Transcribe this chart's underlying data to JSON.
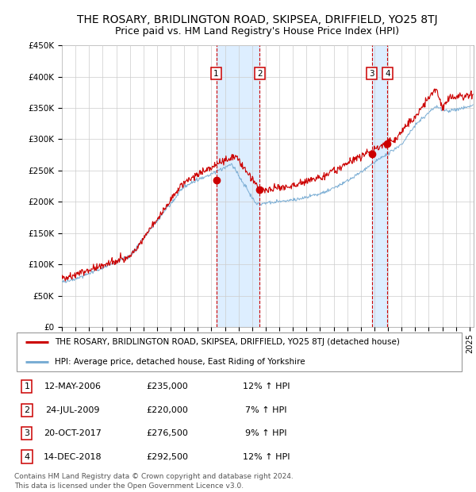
{
  "title": "THE ROSARY, BRIDLINGTON ROAD, SKIPSEA, DRIFFIELD, YO25 8TJ",
  "subtitle": "Price paid vs. HM Land Registry's House Price Index (HPI)",
  "red_label": "THE ROSARY, BRIDLINGTON ROAD, SKIPSEA, DRIFFIELD, YO25 8TJ (detached house)",
  "blue_label": "HPI: Average price, detached house, East Riding of Yorkshire",
  "footer": "Contains HM Land Registry data © Crown copyright and database right 2024.\nThis data is licensed under the Open Government Licence v3.0.",
  "transactions": [
    {
      "num": 1,
      "date": "12-MAY-2006",
      "price": 235000,
      "hpi_pct": "12% ↑ HPI",
      "date_float": 2006.36
    },
    {
      "num": 2,
      "date": "24-JUL-2009",
      "price": 220000,
      "hpi_pct": "7% ↑ HPI",
      "date_float": 2009.56
    },
    {
      "num": 3,
      "date": "20-OCT-2017",
      "price": 276500,
      "hpi_pct": "9% ↑ HPI",
      "date_float": 2017.8
    },
    {
      "num": 4,
      "date": "14-DEC-2018",
      "price": 292500,
      "hpi_pct": "12% ↑ HPI",
      "date_float": 2018.96
    }
  ],
  "ylim": [
    0,
    450000
  ],
  "yticks": [
    0,
    50000,
    100000,
    150000,
    200000,
    250000,
    300000,
    350000,
    400000,
    450000
  ],
  "xlim_start": 1995.0,
  "xlim_end": 2025.3,
  "red_color": "#cc0000",
  "blue_color": "#7aadd4",
  "shade_color": "#ddeeff",
  "bg_color": "#ffffff",
  "grid_color": "#cccccc",
  "title_fontsize": 10,
  "subtitle_fontsize": 9
}
